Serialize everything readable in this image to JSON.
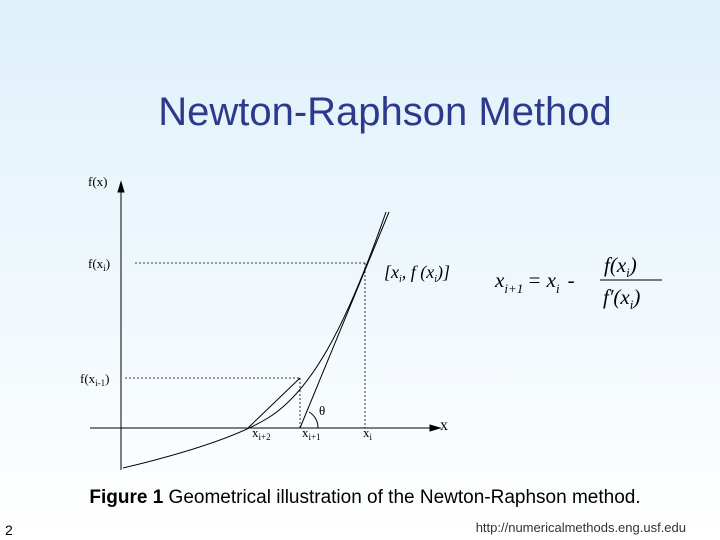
{
  "title": "Newton-Raphson Method",
  "graph": {
    "y_axis_label": "f(x)",
    "x_axis_label": "x",
    "y_labels": [
      [
        "f(x",
        "i",
        ")"
      ],
      [
        "f(x",
        "i-1",
        ")"
      ]
    ],
    "x_labels": [
      [
        "x",
        "i+2"
      ],
      [
        "x",
        "i+1"
      ],
      [
        "x",
        "i"
      ]
    ],
    "angle_label": "θ",
    "point_label": [
      "[x",
      "i",
      ", f (x",
      "i",
      ")]"
    ]
  },
  "formula": {
    "lhs": [
      "x",
      "i+1"
    ],
    "equals": "= x",
    "equals_sub": "i",
    "minus": "-",
    "numerator": [
      "f(x",
      "i",
      ")"
    ],
    "denominator": [
      "f′(x",
      "i",
      ")"
    ]
  },
  "caption": {
    "label": "Figure 1",
    "text": " Geometrical illustration of the Newton-Raphson method."
  },
  "footer": {
    "page": "2",
    "url": "http://numericalmethods.eng.usf.edu"
  }
}
